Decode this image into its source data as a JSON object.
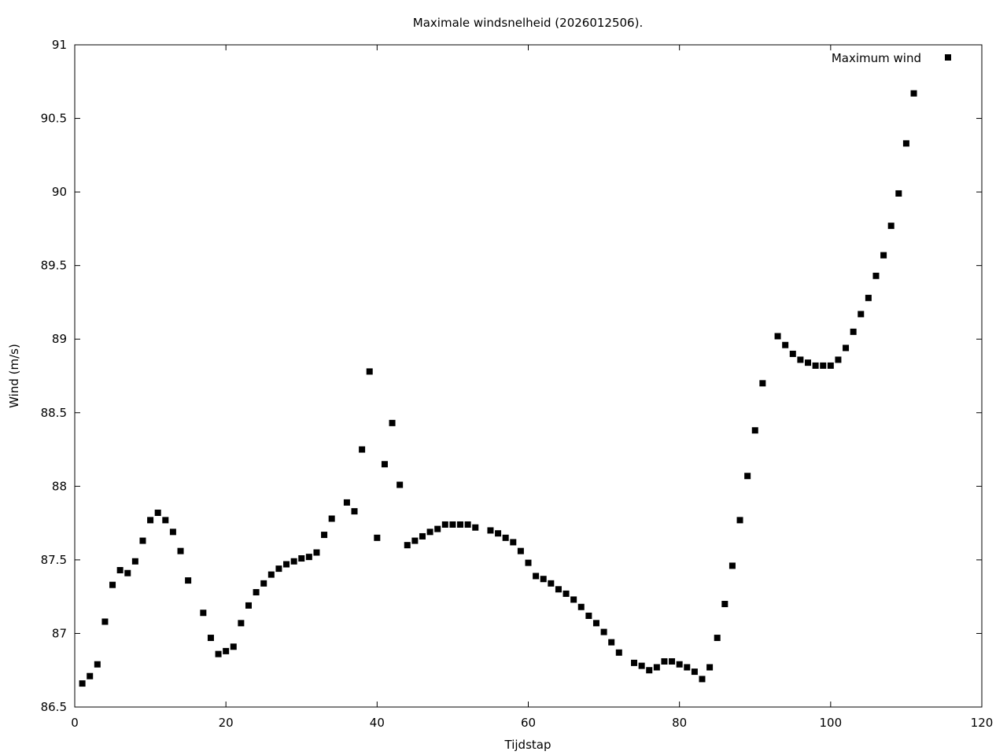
{
  "chart_data": {
    "type": "scatter",
    "title": "Maximale windsnelheid (2026012506).",
    "xlabel": "Tijdstap",
    "ylabel": "Wind (m/s)",
    "xlim": [
      0,
      120
    ],
    "ylim": [
      86.5,
      91
    ],
    "xticks": [
      0,
      20,
      40,
      60,
      80,
      100,
      120
    ],
    "yticks": [
      86.5,
      87,
      87.5,
      88,
      88.5,
      89,
      89.5,
      90,
      90.5,
      91
    ],
    "legend_position": "top-right",
    "grid": false,
    "series": [
      {
        "name": "Maximum wind",
        "color": "#000000",
        "marker": "square",
        "x": [
          1,
          2,
          3,
          4,
          5,
          6,
          7,
          8,
          9,
          10,
          11,
          12,
          13,
          14,
          15,
          17,
          18,
          19,
          20,
          21,
          22,
          23,
          24,
          25,
          26,
          27,
          28,
          29,
          30,
          31,
          32,
          33,
          34,
          36,
          37,
          38,
          39,
          40,
          41,
          42,
          43,
          44,
          45,
          46,
          47,
          48,
          49,
          50,
          51,
          52,
          53,
          55,
          56,
          57,
          58,
          59,
          60,
          61,
          62,
          63,
          64,
          65,
          66,
          67,
          68,
          69,
          70,
          71,
          72,
          74,
          75,
          76,
          77,
          78,
          79,
          80,
          81,
          82,
          83,
          84,
          85,
          86,
          87,
          88,
          89,
          90,
          91,
          93,
          94,
          95,
          96,
          97,
          98,
          99,
          100,
          101,
          102,
          103,
          104,
          105,
          106,
          107,
          108,
          109,
          110,
          111
        ],
        "y": [
          86.66,
          86.71,
          86.79,
          87.08,
          87.33,
          87.43,
          87.41,
          87.49,
          87.63,
          87.77,
          87.82,
          87.77,
          87.69,
          87.56,
          87.36,
          87.14,
          86.97,
          86.86,
          86.88,
          86.91,
          87.07,
          87.19,
          87.28,
          87.34,
          87.4,
          87.44,
          87.47,
          87.49,
          87.51,
          87.52,
          87.55,
          87.67,
          87.78,
          87.89,
          87.83,
          88.25,
          88.78,
          87.65,
          88.15,
          88.43,
          88.01,
          87.6,
          87.63,
          87.66,
          87.69,
          87.71,
          87.74,
          87.74,
          87.74,
          87.74,
          87.72,
          87.7,
          87.68,
          87.65,
          87.62,
          87.56,
          87.48,
          87.39,
          87.37,
          87.34,
          87.3,
          87.27,
          87.23,
          87.18,
          87.12,
          87.07,
          87.01,
          86.94,
          86.87,
          86.8,
          86.78,
          86.75,
          86.77,
          86.81,
          86.81,
          86.79,
          86.77,
          86.74,
          86.69,
          86.77,
          86.97,
          87.2,
          87.46,
          87.77,
          88.07,
          88.38,
          88.7,
          89.02,
          88.96,
          88.9,
          88.86,
          88.84,
          88.82,
          88.82,
          88.82,
          88.86,
          88.94,
          89.05,
          89.17,
          89.28,
          89.43,
          89.57,
          89.77,
          89.99,
          90.33,
          90.67
        ]
      }
    ]
  }
}
